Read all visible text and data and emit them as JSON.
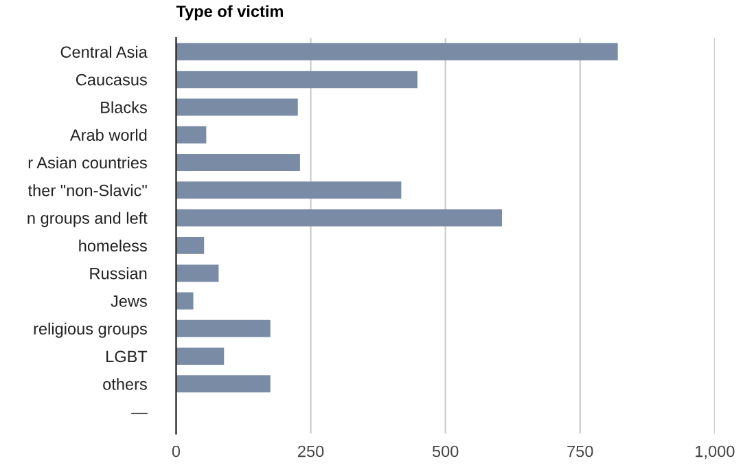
{
  "chart_data": {
    "type": "bar",
    "orientation": "horizontal",
    "title": "Type of victim",
    "categories": [
      "Central Asia",
      "Caucasus",
      "Blacks",
      "Arab world",
      "r Asian countries",
      "ther \"non-Slavic\"",
      "n groups and left",
      "homeless",
      "Russian",
      "Jews",
      "religious groups",
      "LGBT",
      "others",
      "—"
    ],
    "values": [
      820,
      448,
      226,
      56,
      230,
      418,
      605,
      52,
      79,
      32,
      175,
      89,
      175,
      null
    ],
    "color": "#7a8ba5",
    "xlim": [
      0,
      1000
    ],
    "xticks": [
      0,
      250,
      500,
      750,
      {
        "value": 1000,
        "label": "1,000"
      }
    ],
    "grid": "x"
  }
}
